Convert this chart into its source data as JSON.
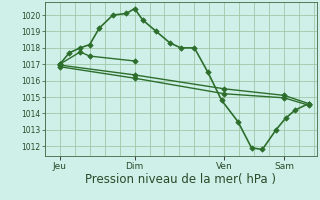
{
  "bg_color": "#cff0e8",
  "grid_color": "#a0c8a8",
  "line_color": "#2d6e2d",
  "marker_color": "#2d6e2d",
  "xlabel": "Pression niveau de la mer( hPa )",
  "xlabel_fontsize": 8.5,
  "yticks": [
    1012,
    1013,
    1014,
    1015,
    1016,
    1017,
    1018,
    1019,
    1020
  ],
  "ylim": [
    1011.4,
    1020.8
  ],
  "xlim": [
    0,
    10.0
  ],
  "xtick_labels": [
    "Jeu",
    "Dim",
    "Ven",
    "Sam"
  ],
  "xtick_positions": [
    0.55,
    3.3,
    6.6,
    8.8
  ],
  "series": [
    {
      "x": [
        0.55,
        0.9,
        1.3,
        1.65,
        2.0,
        2.5,
        3.0,
        3.3,
        3.6,
        4.1,
        4.6,
        5.0,
        5.5,
        6.0,
        6.5,
        7.1,
        7.6,
        8.0,
        8.5,
        8.85,
        9.2,
        9.7
      ],
      "y": [
        1017.0,
        1017.7,
        1018.0,
        1018.2,
        1019.2,
        1020.0,
        1020.1,
        1020.4,
        1019.7,
        1019.0,
        1018.3,
        1018.0,
        1018.0,
        1016.5,
        1014.8,
        1013.5,
        1011.9,
        1011.8,
        1013.0,
        1013.7,
        1014.2,
        1014.6
      ],
      "marker": "D",
      "markersize": 2.8,
      "linewidth": 1.2
    },
    {
      "x": [
        0.55,
        1.3,
        1.65,
        3.3
      ],
      "y": [
        1017.0,
        1017.75,
        1017.5,
        1017.2
      ],
      "marker": "D",
      "markersize": 2.8,
      "linewidth": 1.0
    },
    {
      "x": [
        0.55,
        3.3,
        6.6,
        8.8,
        9.7
      ],
      "y": [
        1016.85,
        1016.15,
        1015.2,
        1014.95,
        1014.5
      ],
      "marker": "D",
      "markersize": 2.8,
      "linewidth": 1.0
    },
    {
      "x": [
        0.55,
        3.3,
        6.6,
        8.8,
        9.7
      ],
      "y": [
        1016.95,
        1016.35,
        1015.5,
        1015.1,
        1014.6
      ],
      "marker": "D",
      "markersize": 2.8,
      "linewidth": 1.0
    }
  ]
}
